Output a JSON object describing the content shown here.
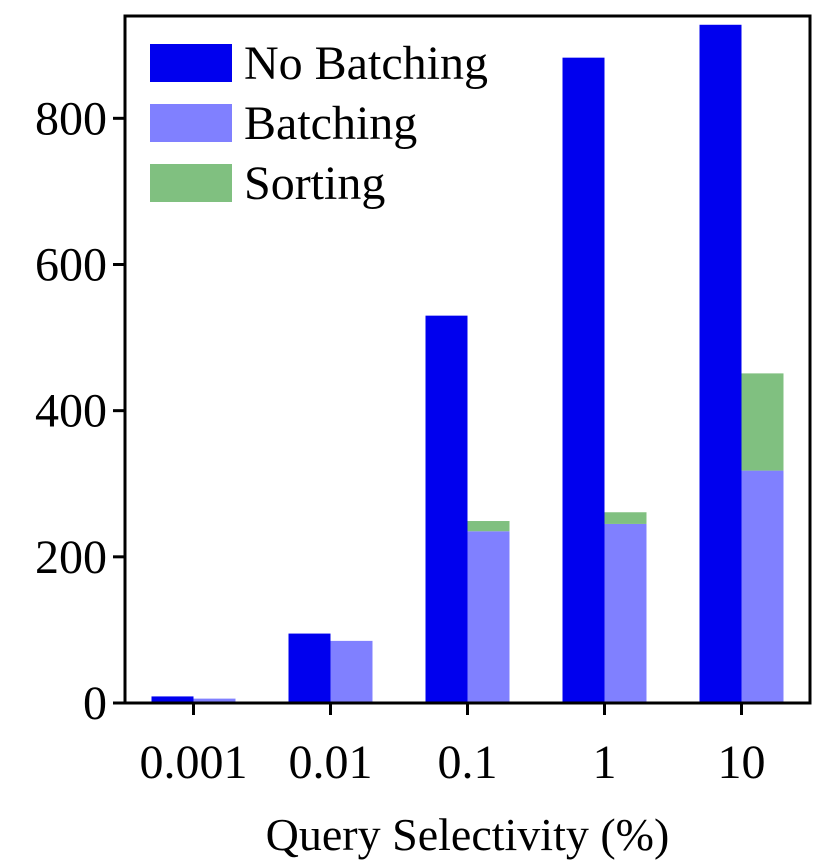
{
  "chart_data": {
    "type": "bar",
    "title": "",
    "xlabel": "Query Selectivity (%)",
    "ylabel": "",
    "categories": [
      "0.001",
      "0.01",
      "0.1",
      "1",
      "10"
    ],
    "ylim": [
      0,
      940
    ],
    "yticks": [
      0,
      200,
      400,
      600,
      800
    ],
    "grid": false,
    "legend_position": "top-left",
    "series": [
      {
        "name": "No Batching",
        "group": "left",
        "color": "#0000ee",
        "values": [
          9,
          95,
          530,
          883,
          928
        ]
      },
      {
        "name": "Batching",
        "group": "right",
        "color": "#8080ff",
        "values": [
          6,
          85,
          235,
          245,
          318
        ]
      },
      {
        "name": "Sorting",
        "group": "right",
        "stacked_on": "Batching",
        "color": "#80c080",
        "values": [
          0,
          0,
          14,
          16,
          133
        ]
      }
    ]
  }
}
